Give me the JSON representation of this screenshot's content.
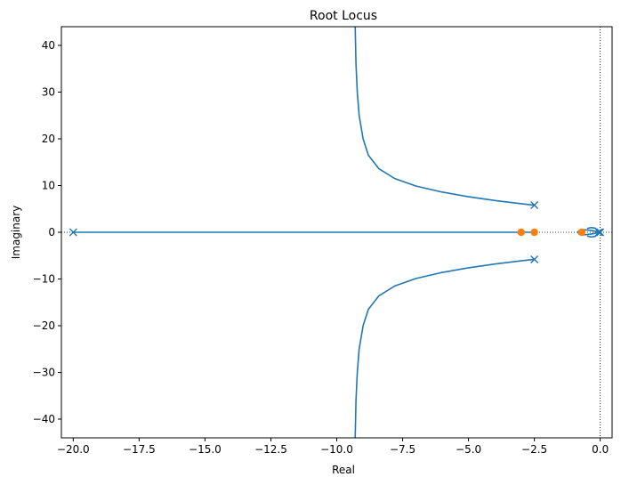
{
  "chart_data": {
    "type": "line",
    "title": "Root Locus",
    "xlabel": "Real",
    "ylabel": "Imaginary",
    "xlim": [
      -20.45,
      0.45
    ],
    "ylim": [
      -44,
      44
    ],
    "x_ticks": [
      -20.0,
      -17.5,
      -15.0,
      -12.5,
      -10.0,
      -7.5,
      -5.0,
      -2.5,
      0.0
    ],
    "x_tick_labels": [
      "−20.0",
      "−17.5",
      "−15.0",
      "−12.5",
      "−10.0",
      "−7.5",
      "−5.0",
      "−2.5",
      "0.0"
    ],
    "y_ticks": [
      -40,
      -30,
      -20,
      -10,
      0,
      10,
      20,
      30,
      40
    ],
    "y_tick_labels": [
      "−40",
      "−30",
      "−20",
      "−10",
      "0",
      "10",
      "20",
      "30",
      "40"
    ],
    "grid": false,
    "reference_lines": {
      "x": 0,
      "y": 0,
      "style": "dotted",
      "color": "#000000"
    },
    "locus_color": "#1f77b4",
    "zero_color": "#ff7f0e",
    "series": [
      {
        "points": [
          [
            -2.5,
            5.8
          ],
          [
            -3.0,
            6.1
          ],
          [
            -4.0,
            6.8
          ],
          [
            -5.0,
            7.6
          ],
          [
            -6.0,
            8.6
          ],
          [
            -7.0,
            9.9
          ],
          [
            -7.8,
            11.5
          ],
          [
            -8.4,
            13.6
          ],
          [
            -8.8,
            16.5
          ],
          [
            -9.0,
            20.0
          ],
          [
            -9.15,
            25.0
          ],
          [
            -9.22,
            30.0
          ],
          [
            -9.27,
            36.0
          ],
          [
            -9.3,
            44.0
          ]
        ]
      },
      {
        "points": [
          [
            -2.5,
            -5.8
          ],
          [
            -3.0,
            -6.1
          ],
          [
            -4.0,
            -6.8
          ],
          [
            -5.0,
            -7.6
          ],
          [
            -6.0,
            -8.6
          ],
          [
            -7.0,
            -9.9
          ],
          [
            -7.8,
            -11.5
          ],
          [
            -8.4,
            -13.6
          ],
          [
            -8.8,
            -16.5
          ],
          [
            -9.0,
            -20.0
          ],
          [
            -9.15,
            -25.0
          ],
          [
            -9.22,
            -30.0
          ],
          [
            -9.27,
            -36.0
          ],
          [
            -9.3,
            -44.0
          ]
        ]
      },
      {
        "points": [
          [
            -20.0,
            0.0
          ],
          [
            -2.5,
            0.0
          ]
        ]
      },
      {
        "points": [
          [
            0.0,
            0.0
          ],
          [
            -0.3,
            0.35
          ],
          [
            -0.6,
            0.55
          ],
          [
            -0.8,
            0.4
          ],
          [
            -0.85,
            0.0
          ],
          [
            -0.8,
            -0.4
          ],
          [
            -0.6,
            -0.55
          ],
          [
            -0.3,
            -0.35
          ],
          [
            0.0,
            0.0
          ]
        ]
      },
      {
        "points": [
          [
            0.0,
            0.0
          ],
          [
            -0.2,
            0.9
          ],
          [
            -0.35,
            1.0
          ],
          [
            -0.5,
            0.8
          ]
        ]
      },
      {
        "points": [
          [
            0.0,
            0.0
          ],
          [
            -0.2,
            -0.9
          ],
          [
            -0.35,
            -1.0
          ],
          [
            -0.5,
            -0.8
          ]
        ]
      }
    ],
    "poles": [
      [
        -20.0,
        0.0
      ],
      [
        -2.5,
        5.8
      ],
      [
        -2.5,
        -5.8
      ],
      [
        0.0,
        0.0
      ],
      [
        -0.05,
        0.0
      ]
    ],
    "zeros": [
      [
        -3.0,
        0.0
      ],
      [
        -2.5,
        0.0
      ],
      [
        -0.7,
        0.0
      ]
    ]
  }
}
